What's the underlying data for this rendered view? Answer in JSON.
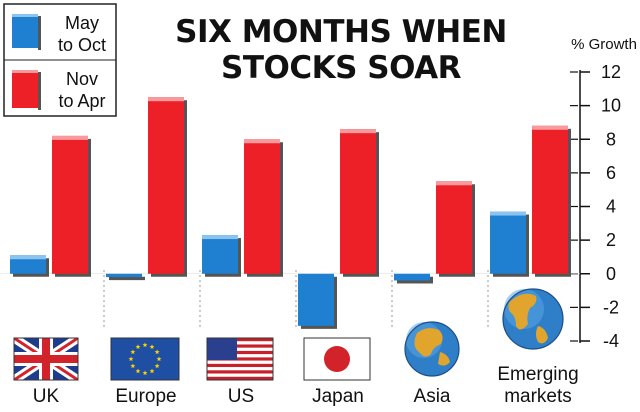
{
  "chart_data": {
    "type": "bar",
    "title_lines": [
      "SIX MONTHS WHEN",
      "STOCKS SOAR"
    ],
    "ylabel": "% Growth",
    "ylim": [
      -4,
      12
    ],
    "yticks": [
      12,
      10,
      8,
      6,
      4,
      2,
      0,
      -2,
      -4
    ],
    "ytick_labels": [
      "12",
      "10",
      "8",
      "6",
      "4",
      "2",
      "0",
      "-2",
      "-4"
    ],
    "categories": [
      "UK",
      "Europe",
      "US",
      "Japan",
      "Asia",
      "Emerging markets"
    ],
    "category_label_lines": [
      [
        "UK"
      ],
      [
        "Europe"
      ],
      [
        "US"
      ],
      [
        "Japan"
      ],
      [
        "Asia"
      ],
      [
        "Emerging",
        "markets"
      ]
    ],
    "category_icons": [
      "uk-flag-icon",
      "eu-flag-icon",
      "us-flag-icon",
      "japan-flag-icon",
      "globe-asia-icon",
      "globe-americas-icon"
    ],
    "series": [
      {
        "name": "May to Oct",
        "legend_lines": [
          "May",
          "to Oct"
        ],
        "color": "#1f7fd0",
        "values": [
          1.1,
          -0.2,
          2.3,
          -3.1,
          -0.4,
          3.7
        ]
      },
      {
        "name": "Nov to Apr",
        "legend_lines": [
          "Nov",
          "to Apr"
        ],
        "color": "#ee2027",
        "values": [
          8.2,
          10.5,
          8.0,
          8.6,
          5.5,
          8.8
        ]
      }
    ],
    "legend": "top-left",
    "grid": false
  }
}
